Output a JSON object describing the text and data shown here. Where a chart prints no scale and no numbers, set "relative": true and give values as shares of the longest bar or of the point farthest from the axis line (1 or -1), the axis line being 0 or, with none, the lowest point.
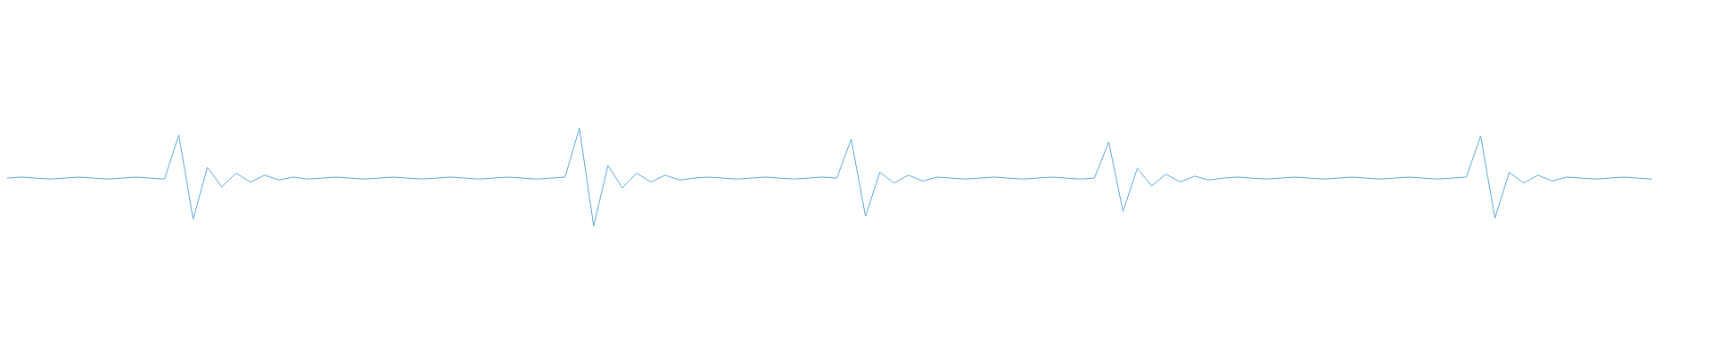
{
  "chart_data": {
    "type": "line",
    "relative": true,
    "color": "#5aaae0",
    "categories": [
      null,
      null,
      null,
      null,
      null,
      null,
      null,
      null,
      null,
      null,
      null,
      null,
      null,
      null,
      null,
      null,
      null,
      null,
      null,
      null,
      null,
      null,
      null,
      null,
      null,
      null,
      null,
      null,
      null,
      null,
      null,
      null,
      null,
      null,
      null,
      null,
      null,
      null,
      null,
      null,
      null,
      null,
      null,
      null,
      null,
      null,
      null,
      null,
      null,
      null,
      null,
      null,
      null,
      null,
      null,
      null,
      null,
      null,
      null,
      null,
      null,
      null,
      null,
      null,
      null,
      null,
      null,
      null,
      null,
      null,
      null,
      null,
      null,
      null,
      null,
      null,
      null,
      null,
      null,
      null,
      null,
      null,
      null,
      null,
      null,
      null,
      null,
      null,
      null,
      null,
      null,
      null,
      null,
      null,
      null,
      null,
      null,
      null,
      null,
      null,
      null,
      null,
      null,
      null,
      null,
      null,
      null,
      null,
      null,
      null,
      null,
      null,
      null,
      null,
      null,
      null
    ],
    "values": [
      0.49,
      0.5,
      0.49,
      0.48,
      0.49,
      0.5,
      0.49,
      0.48,
      0.49,
      0.5,
      0.49,
      0.48,
      0.93,
      0.07,
      0.6,
      0.4,
      0.54,
      0.45,
      0.52,
      0.47,
      0.5,
      0.48,
      0.49,
      0.5,
      0.49,
      0.48,
      0.49,
      0.5,
      0.49,
      0.48,
      0.49,
      0.5,
      0.49,
      0.48,
      0.49,
      0.5,
      0.49,
      0.48,
      0.49,
      0.5,
      1,
      0,
      0.62,
      0.39,
      0.54,
      0.45,
      0.52,
      0.47,
      0.49,
      0.5,
      0.49,
      0.48,
      0.49,
      0.5,
      0.49,
      0.48,
      0.49,
      0.5,
      0.49,
      0.89,
      0.1,
      0.55,
      0.44,
      0.52,
      0.46,
      0.5,
      0.49,
      0.48,
      0.49,
      0.5,
      0.49,
      0.48,
      0.49,
      0.5,
      0.49,
      0.48,
      0.49,
      0.86,
      0.15,
      0.59,
      0.41,
      0.53,
      0.45,
      0.51,
      0.47,
      0.49,
      0.5,
      0.49,
      0.48,
      0.49,
      0.5,
      0.49,
      0.48,
      0.49,
      0.5,
      0.49,
      0.48,
      0.49,
      0.5,
      0.49,
      0.48,
      0.49,
      0.5,
      0.92,
      0.08,
      0.55,
      0.44,
      0.52,
      0.46,
      0.5,
      0.49,
      0.48,
      0.49,
      0.5,
      0.49,
      0.48
    ]
  }
}
